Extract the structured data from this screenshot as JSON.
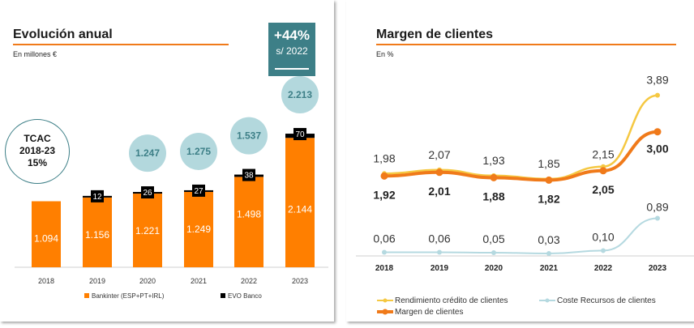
{
  "left": {
    "title": "Evolución anual",
    "subtitle": "En millones €",
    "kpi": {
      "big": "+44%",
      "small": "s/ 2022"
    },
    "tcac": [
      "TCAC",
      "2018-23",
      "15%"
    ],
    "colors": {
      "bankinter": "#ff7f00",
      "evo": "#000000",
      "bubble": "#b3d8dd",
      "bubble_text": "#3d7f87"
    }
  },
  "right": {
    "title": "Margen de clientes",
    "subtitle": "En %",
    "colors": {
      "rendimiento": "#f5c842",
      "coste": "#b5d9e0",
      "margen": "#f07a1a"
    }
  },
  "chart_data": [
    {
      "type": "bar",
      "categories": [
        "2018",
        "2019",
        "2020",
        "2021",
        "2022",
        "2023"
      ],
      "series": [
        {
          "name": "Bankinter (ESP+PT+IRL)",
          "values": [
            1094,
            1156,
            1221,
            1249,
            1498,
            2144
          ],
          "labels": [
            "1.094",
            "1.156",
            "1.221",
            "1.249",
            "1.498",
            "2.144"
          ]
        },
        {
          "name": "EVO Banco",
          "values": [
            null,
            12,
            26,
            27,
            38,
            70
          ],
          "labels": [
            "",
            "12",
            "26",
            "27",
            "38",
            "70"
          ]
        }
      ],
      "totals": [
        "",
        "",
        "1.247",
        "1.275",
        "1.537",
        "2.213"
      ],
      "ylim": [
        0,
        2400
      ],
      "legend": "bottom"
    },
    {
      "type": "line",
      "categories": [
        "2018",
        "2019",
        "2020",
        "2021",
        "2022",
        "2023"
      ],
      "series": [
        {
          "name": "Rendimiento crédito de clientes",
          "values": [
            1.98,
            2.07,
            1.93,
            1.85,
            2.15,
            3.89
          ],
          "labels": [
            "1,98",
            "2,07",
            "1,93",
            "1,85",
            "2,15",
            "3,89"
          ]
        },
        {
          "name": "Coste Recursos de clientes",
          "values": [
            0.06,
            0.06,
            0.05,
            0.03,
            0.1,
            0.89
          ],
          "labels": [
            "0,06",
            "0,06",
            "0,05",
            "0,03",
            "0,10",
            "0,89"
          ]
        },
        {
          "name": "Margen de clientes",
          "values": [
            1.92,
            2.01,
            1.88,
            1.82,
            2.05,
            3.0
          ],
          "labels": [
            "1,92",
            "2,01",
            "1,88",
            "1,82",
            "2,05",
            "3,00"
          ]
        }
      ],
      "legend": "bottom"
    }
  ]
}
